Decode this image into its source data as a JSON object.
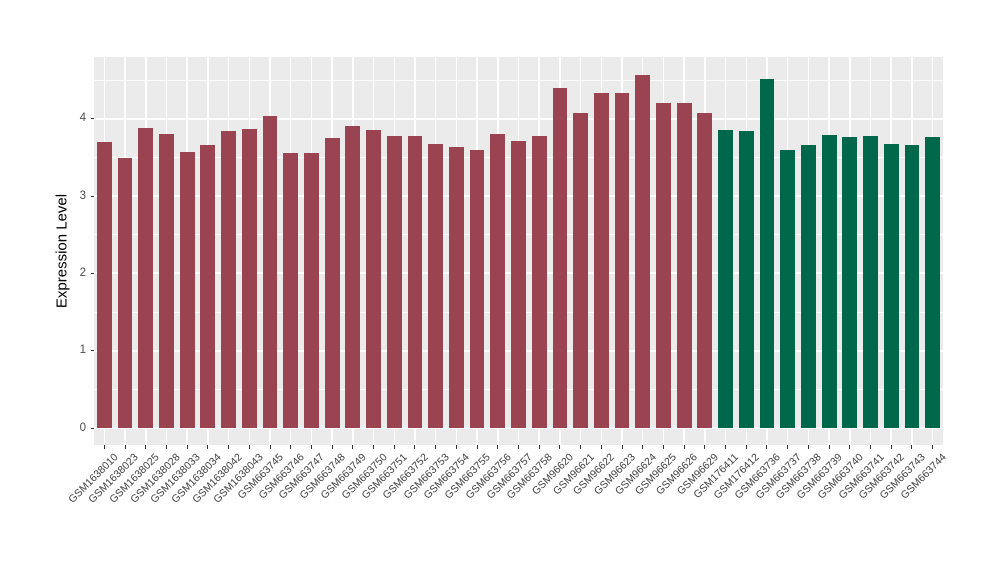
{
  "chart_data": {
    "type": "bar",
    "title": "",
    "xlabel": "",
    "ylabel": "Expression Level",
    "ylim": [
      -0.23,
      4.79
    ],
    "grid": true,
    "legend_position": "none",
    "panel_background": "#EBEBEB",
    "gridline_color": "#FFFFFF",
    "y_tick_labels": [
      "0",
      "1",
      "2",
      "3",
      "4"
    ],
    "y_tick_values": [
      0,
      1,
      2,
      3,
      4
    ],
    "y_minor_tick_values": [
      0.5,
      1.5,
      2.5,
      3.5,
      4.5
    ],
    "categories": [
      "GSM1638010",
      "GSM1638023",
      "GSM1638025",
      "GSM1638028",
      "GSM1638033",
      "GSM1638034",
      "GSM1638042",
      "GSM1638043",
      "GSM663745",
      "GSM663746",
      "GSM663747",
      "GSM663748",
      "GSM663749",
      "GSM663750",
      "GSM663751",
      "GSM663752",
      "GSM663753",
      "GSM663754",
      "GSM663755",
      "GSM663756",
      "GSM663757",
      "GSM663758",
      "GSM96620",
      "GSM96621",
      "GSM96622",
      "GSM96623",
      "GSM96624",
      "GSM96625",
      "GSM96626",
      "GSM96629",
      "GSM176411",
      "GSM176412",
      "GSM663736",
      "GSM663737",
      "GSM663738",
      "GSM663739",
      "GSM663740",
      "GSM663741",
      "GSM663742",
      "GSM663743",
      "GSM663744"
    ],
    "values": [
      3.7,
      3.49,
      3.88,
      3.8,
      3.57,
      3.66,
      3.84,
      3.87,
      4.03,
      3.56,
      3.56,
      3.75,
      3.91,
      3.85,
      3.78,
      3.78,
      3.67,
      3.64,
      3.6,
      3.8,
      3.71,
      3.78,
      4.4,
      4.07,
      4.33,
      4.33,
      4.57,
      4.21,
      4.21,
      4.08,
      3.86,
      3.84,
      4.52,
      3.6,
      3.66,
      3.79,
      3.76,
      3.78,
      3.68,
      3.66,
      3.77
    ],
    "groups": [
      "maroon",
      "maroon",
      "maroon",
      "maroon",
      "maroon",
      "maroon",
      "maroon",
      "maroon",
      "maroon",
      "maroon",
      "maroon",
      "maroon",
      "maroon",
      "maroon",
      "maroon",
      "maroon",
      "maroon",
      "maroon",
      "maroon",
      "maroon",
      "maroon",
      "maroon",
      "maroon",
      "maroon",
      "maroon",
      "maroon",
      "maroon",
      "maroon",
      "maroon",
      "maroon",
      "green",
      "green",
      "green",
      "green",
      "green",
      "green",
      "green",
      "green",
      "green",
      "green",
      "green"
    ],
    "group_colors": {
      "maroon": "#9B4451",
      "green": "#00684A"
    }
  }
}
